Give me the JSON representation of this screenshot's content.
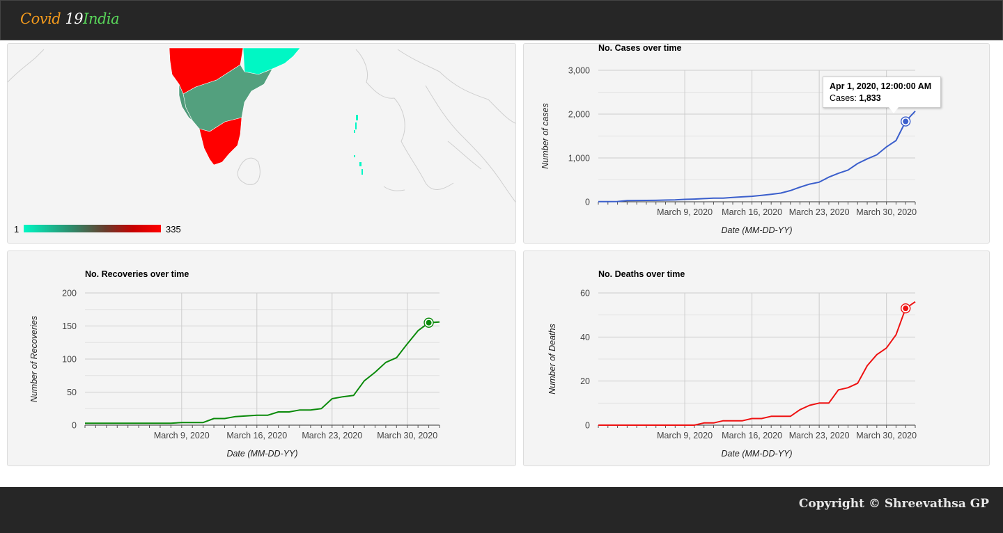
{
  "brand": {
    "part1": "Covid ",
    "part2": "19",
    "part3": "India"
  },
  "map": {
    "legend_min": "1",
    "legend_max": "335",
    "colors": {
      "low": "#00f7c4",
      "mid": "#4b9e80",
      "high": "#ff0000"
    }
  },
  "footer": {
    "copyright": "Copyright © Shreevathsa GP"
  },
  "tooltip": {
    "date": "Apr 1, 2020, 12:00:00 AM",
    "label": "Cases: ",
    "value": "1,833"
  },
  "chart_data": [
    {
      "type": "line",
      "title": "No. Cases over time",
      "xlabel": "Date (MM-DD-YY)",
      "ylabel": "Number of cases",
      "color": "#3b5fcc",
      "yticks": [
        "0",
        "1,000",
        "2,000",
        "3,000"
      ],
      "ylim": [
        0,
        3000
      ],
      "xticks": [
        "March 9, 2020",
        "March 16, 2020",
        "March 23, 2020",
        "March 30, 2020"
      ],
      "x": [
        "2020-02-29",
        "2020-03-01",
        "2020-03-02",
        "2020-03-03",
        "2020-03-04",
        "2020-03-05",
        "2020-03-06",
        "2020-03-07",
        "2020-03-08",
        "2020-03-09",
        "2020-03-10",
        "2020-03-11",
        "2020-03-12",
        "2020-03-13",
        "2020-03-14",
        "2020-03-15",
        "2020-03-16",
        "2020-03-17",
        "2020-03-18",
        "2020-03-19",
        "2020-03-20",
        "2020-03-21",
        "2020-03-22",
        "2020-03-23",
        "2020-03-24",
        "2020-03-25",
        "2020-03-26",
        "2020-03-27",
        "2020-03-28",
        "2020-03-29",
        "2020-03-30",
        "2020-03-31",
        "2020-04-01",
        "2020-04-02"
      ],
      "values": [
        3,
        5,
        6,
        28,
        30,
        31,
        34,
        39,
        43,
        56,
        62,
        73,
        82,
        84,
        100,
        112,
        126,
        146,
        171,
        198,
        256,
        334,
        403,
        448,
        562,
        649,
        724,
        873,
        979,
        1071,
        1251,
        1397,
        1833,
        2069
      ],
      "highlight_index": 32
    },
    {
      "type": "line",
      "title": "No. Recoveries over time",
      "xlabel": "Date (MM-DD-YY)",
      "ylabel": "Number of Recoveries",
      "color": "#0a8a0a",
      "yticks": [
        "0",
        "50",
        "100",
        "150",
        "200"
      ],
      "ylim": [
        0,
        200
      ],
      "xticks": [
        "March 9, 2020",
        "March 16, 2020",
        "March 23, 2020",
        "March 30, 2020"
      ],
      "x": [
        "2020-02-29",
        "2020-03-01",
        "2020-03-02",
        "2020-03-03",
        "2020-03-04",
        "2020-03-05",
        "2020-03-06",
        "2020-03-07",
        "2020-03-08",
        "2020-03-09",
        "2020-03-10",
        "2020-03-11",
        "2020-03-12",
        "2020-03-13",
        "2020-03-14",
        "2020-03-15",
        "2020-03-16",
        "2020-03-17",
        "2020-03-18",
        "2020-03-19",
        "2020-03-20",
        "2020-03-21",
        "2020-03-22",
        "2020-03-23",
        "2020-03-24",
        "2020-03-25",
        "2020-03-26",
        "2020-03-27",
        "2020-03-28",
        "2020-03-29",
        "2020-03-30",
        "2020-03-31",
        "2020-04-01",
        "2020-04-02"
      ],
      "values": [
        3,
        3,
        3,
        3,
        3,
        3,
        3,
        3,
        3,
        4,
        4,
        4,
        10,
        10,
        13,
        14,
        15,
        15,
        20,
        20,
        23,
        23,
        25,
        40,
        43,
        45,
        67,
        80,
        95,
        102,
        123,
        143,
        155,
        156
      ],
      "highlight_index": 32
    },
    {
      "type": "line",
      "title": "No. Deaths over time",
      "xlabel": "Date (MM-DD-YY)",
      "ylabel": "Number of Deaths",
      "color": "#ee1111",
      "yticks": [
        "0",
        "20",
        "40",
        "60"
      ],
      "ylim": [
        0,
        60
      ],
      "xticks": [
        "March 9, 2020",
        "March 16, 2020",
        "March 23, 2020",
        "March 30, 2020"
      ],
      "x": [
        "2020-02-29",
        "2020-03-01",
        "2020-03-02",
        "2020-03-03",
        "2020-03-04",
        "2020-03-05",
        "2020-03-06",
        "2020-03-07",
        "2020-03-08",
        "2020-03-09",
        "2020-03-10",
        "2020-03-11",
        "2020-03-12",
        "2020-03-13",
        "2020-03-14",
        "2020-03-15",
        "2020-03-16",
        "2020-03-17",
        "2020-03-18",
        "2020-03-19",
        "2020-03-20",
        "2020-03-21",
        "2020-03-22",
        "2020-03-23",
        "2020-03-24",
        "2020-03-25",
        "2020-03-26",
        "2020-03-27",
        "2020-03-28",
        "2020-03-29",
        "2020-03-30",
        "2020-03-31",
        "2020-04-01",
        "2020-04-02"
      ],
      "values": [
        0,
        0,
        0,
        0,
        0,
        0,
        0,
        0,
        0,
        0,
        0,
        1,
        1,
        2,
        2,
        2,
        3,
        3,
        4,
        4,
        4,
        7,
        9,
        10,
        10,
        16,
        17,
        19,
        27,
        32,
        35,
        41,
        53,
        56
      ],
      "highlight_index": 32
    }
  ]
}
